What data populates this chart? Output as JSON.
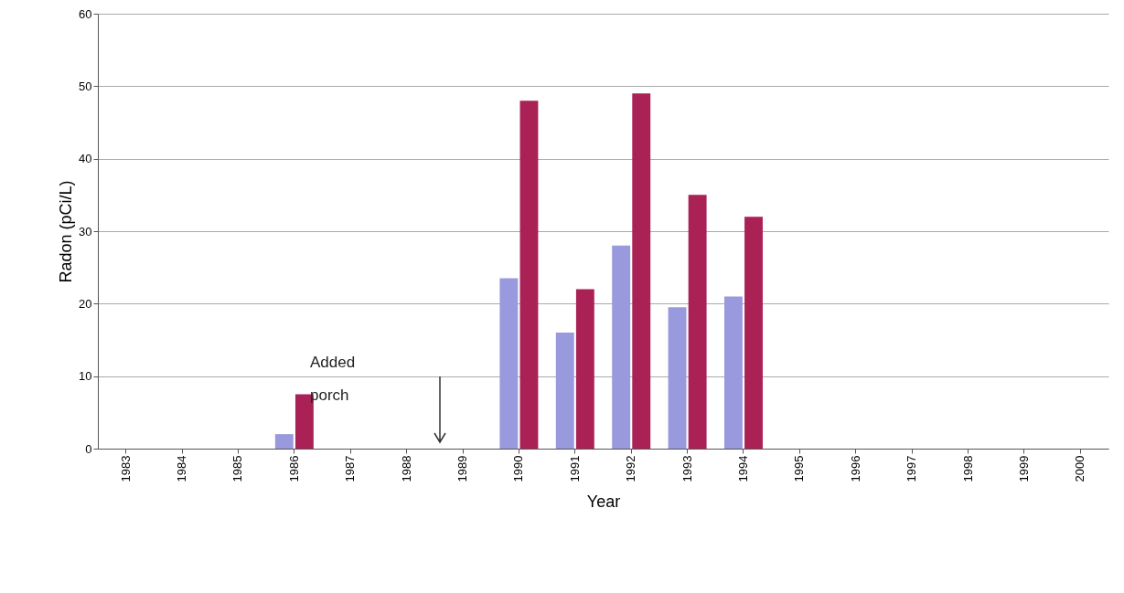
{
  "chart_data": {
    "type": "bar",
    "xlabel": "Year",
    "ylabel": "Radon (pCi/L)",
    "categories": [
      "1983",
      "1984",
      "1985",
      "1986",
      "1987",
      "1988",
      "1989",
      "1990",
      "1991",
      "1992",
      "1993",
      "1994",
      "1995",
      "1996",
      "1997",
      "1998",
      "1999",
      "2000"
    ],
    "series": [
      {
        "color": "#9999dd",
        "values": [
          null,
          null,
          null,
          2,
          null,
          null,
          null,
          23.5,
          16,
          28,
          19.5,
          21,
          null,
          null,
          null,
          null,
          null,
          null
        ]
      },
      {
        "color": "#aa2255",
        "values": [
          null,
          null,
          null,
          7.5,
          null,
          null,
          null,
          48,
          22,
          49,
          35,
          32,
          null,
          null,
          null,
          null,
          null,
          null
        ]
      }
    ],
    "ylim": [
      0,
      60
    ],
    "yticks": [
      0,
      10,
      20,
      30,
      40,
      50,
      60
    ],
    "grid": "y",
    "annotations": [
      "Added porch"
    ]
  }
}
